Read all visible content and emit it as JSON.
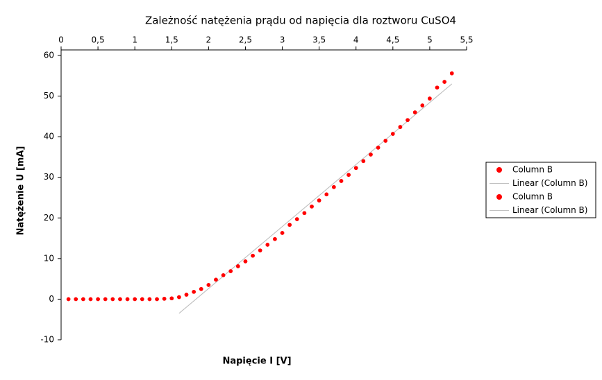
{
  "chart_data": {
    "type": "scatter",
    "title": "Zależność natężenia prądu od napięcia dla roztworu CuSO4",
    "x_label": "Napięcie I [V]",
    "y_label": "Natężenie U [mA]",
    "xlim": [
      0,
      5.5
    ],
    "xticks": [
      0,
      {
        "value": 0.5,
        "label": "0,5"
      },
      1,
      {
        "value": 1.5,
        "label": "1,5"
      },
      2,
      {
        "value": 2.5,
        "label": "2,5"
      },
      3,
      {
        "value": 3.5,
        "label": "3,5"
      },
      4,
      {
        "value": 4.5,
        "label": "4,5"
      },
      5,
      {
        "value": 5.5,
        "label": "5,5"
      }
    ],
    "ylim": [
      -10,
      60
    ],
    "yticks": [
      -10,
      0,
      10,
      20,
      30,
      40,
      50,
      60
    ],
    "legend": "right",
    "series": [
      {
        "name": "Column B",
        "type": "scatter",
        "color": "#ff0000",
        "x": [
          0.1,
          0.2,
          0.3,
          0.4,
          0.5,
          0.6,
          0.7,
          0.8,
          0.9,
          1.0,
          1.1,
          1.2,
          1.3,
          1.4,
          1.5,
          1.6,
          1.7,
          1.8,
          1.9,
          2.0,
          2.1,
          2.2,
          2.3,
          2.4,
          2.5,
          2.6,
          2.7,
          2.8,
          2.9,
          3.0,
          3.1,
          3.2,
          3.3,
          3.4,
          3.5,
          3.6,
          3.7,
          3.8,
          3.9,
          4.0,
          4.1,
          4.2,
          4.3,
          4.4,
          4.5,
          4.6,
          4.7,
          4.8,
          4.9,
          5.0,
          5.1,
          5.2,
          5.3
        ],
        "values": [
          0,
          0,
          0,
          0,
          0,
          0,
          0,
          0,
          0,
          0,
          0,
          0,
          0,
          0.1,
          0.2,
          0.5,
          1.1,
          1.8,
          2.5,
          3.5,
          4.8,
          5.9,
          6.9,
          8.1,
          9.3,
          10.7,
          12.0,
          13.4,
          14.8,
          16.3,
          18.3,
          19.7,
          21.2,
          22.8,
          24.3,
          25.8,
          27.6,
          29.1,
          30.6,
          32.3,
          34.0,
          35.6,
          37.3,
          39.0,
          40.7,
          42.4,
          44.1,
          46.0,
          47.7,
          49.4,
          52.1,
          53.5,
          55.6
        ]
      },
      {
        "name": "Linear (Column B)",
        "type": "line",
        "color": "#c0c0c0",
        "x": [
          1.6,
          5.3
        ],
        "values": [
          -3.5,
          53.0
        ]
      },
      {
        "name": "Column B",
        "type": "scatter",
        "color": "#ff0000",
        "x": [
          0.1,
          0.2,
          0.3,
          0.4,
          0.5,
          0.6,
          0.7,
          0.8,
          0.9,
          1.0,
          1.1,
          1.2,
          1.3,
          1.4,
          1.5,
          1.6,
          1.7,
          1.8,
          1.9,
          2.0,
          2.1,
          2.2,
          2.3,
          2.4,
          2.5,
          2.6,
          2.7,
          2.8,
          2.9,
          3.0,
          3.1,
          3.2,
          3.3,
          3.4,
          3.5,
          3.6,
          3.7,
          3.8,
          3.9,
          4.0,
          4.1,
          4.2,
          4.3,
          4.4,
          4.5,
          4.6,
          4.7,
          4.8,
          4.9,
          5.0,
          5.1,
          5.2,
          5.3
        ],
        "values": [
          0,
          0,
          0,
          0,
          0,
          0,
          0,
          0,
          0,
          0,
          0,
          0,
          0,
          0.1,
          0.2,
          0.5,
          1.1,
          1.8,
          2.5,
          3.5,
          4.8,
          5.9,
          6.9,
          8.1,
          9.3,
          10.7,
          12.0,
          13.4,
          14.8,
          16.3,
          18.3,
          19.7,
          21.2,
          22.8,
          24.3,
          25.8,
          27.6,
          29.1,
          30.6,
          32.3,
          34.0,
          35.6,
          37.3,
          39.0,
          40.7,
          42.4,
          44.1,
          46.0,
          47.7,
          49.4,
          52.1,
          53.5,
          55.6
        ]
      },
      {
        "name": "Linear (Column B)",
        "type": "line",
        "color": "#c0c0c0",
        "x": [
          1.6,
          5.3
        ],
        "values": [
          -3.5,
          53.0
        ]
      }
    ]
  }
}
